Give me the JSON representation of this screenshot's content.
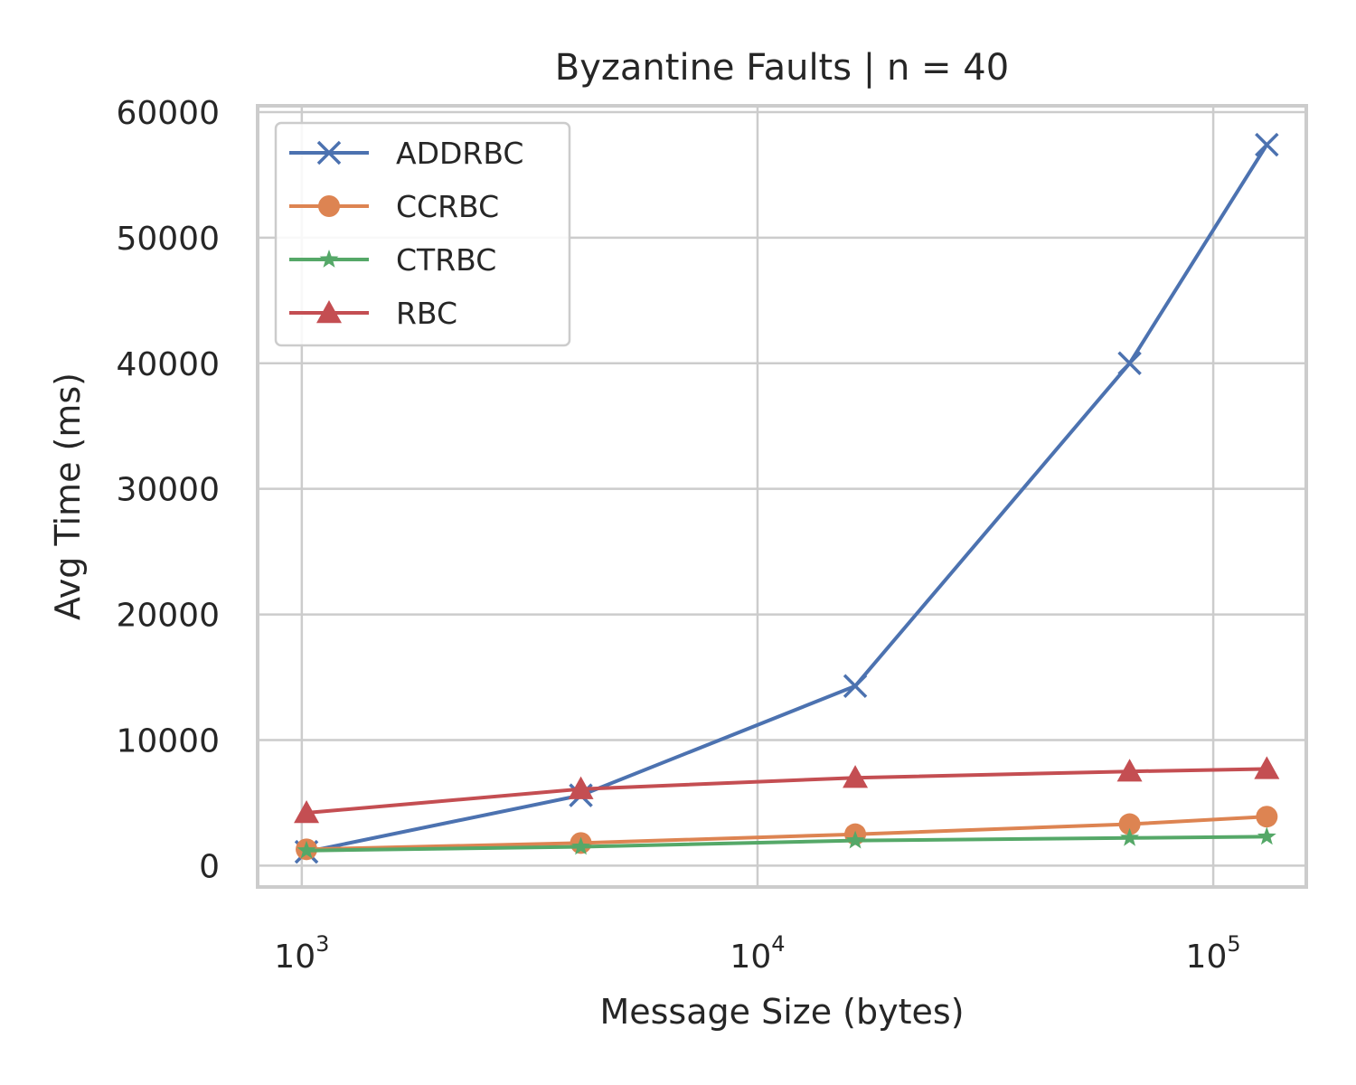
{
  "chart_data": {
    "type": "line",
    "title": "Byzantine Faults | n = 40",
    "xlabel": "Message Size (bytes)",
    "ylabel": "Avg Time (ms)",
    "xscale": "log",
    "xlim": [
      800,
      160000
    ],
    "ylim": [
      -1700,
      60500
    ],
    "grid": true,
    "legend_position": "top-left",
    "x": [
      1024,
      4096,
      16384,
      65536,
      131072
    ],
    "x_ticks": [
      {
        "value": 1000,
        "base": "10",
        "exp": "3"
      },
      {
        "value": 10000,
        "base": "10",
        "exp": "4"
      },
      {
        "value": 100000,
        "base": "10",
        "exp": "5"
      }
    ],
    "y_ticks": [
      0,
      10000,
      20000,
      30000,
      40000,
      50000,
      60000
    ],
    "series": [
      {
        "name": "ADDRBC",
        "color": "#4c72b0",
        "marker": "x",
        "values": [
          1100,
          5600,
          14300,
          40000,
          57400
        ]
      },
      {
        "name": "CCRBC",
        "color": "#dd8452",
        "marker": "circle",
        "values": [
          1300,
          1800,
          2500,
          3300,
          3900
        ]
      },
      {
        "name": "CTRBC",
        "color": "#55a868",
        "marker": "star",
        "values": [
          1200,
          1500,
          2000,
          2200,
          2300
        ]
      },
      {
        "name": "RBC",
        "color": "#c44e52",
        "marker": "triangle",
        "values": [
          4200,
          6100,
          7000,
          7500,
          7700
        ]
      }
    ]
  }
}
